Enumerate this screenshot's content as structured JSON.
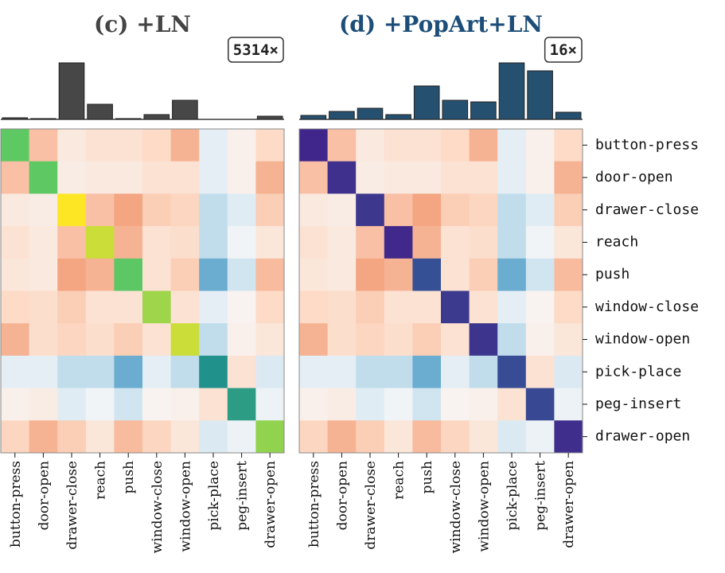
{
  "chart_data": [
    {
      "type": "heatmap",
      "title": "(c) +LN",
      "title_color": "#444444",
      "annotation": "5314×",
      "categories": [
        "button-press",
        "door-open",
        "drawer-close",
        "reach",
        "push",
        "window-close",
        "window-open",
        "pick-place",
        "peg-insert",
        "drawer-open"
      ],
      "bars": [
        2,
        1,
        71,
        19,
        1,
        6,
        24,
        0,
        0,
        4
      ],
      "bar_color": "#474747",
      "ylim": [
        0,
        75
      ],
      "matrix": [
        [
          null,
          0.3,
          0.1,
          0.15,
          0.15,
          0.2,
          0.35,
          -0.1,
          0.05,
          0.2
        ],
        [
          0.3,
          null,
          0.08,
          0.1,
          0.1,
          0.15,
          0.15,
          -0.1,
          0.05,
          0.35
        ],
        [
          0.1,
          0.08,
          null,
          0.3,
          0.4,
          0.25,
          0.22,
          -0.25,
          -0.12,
          0.25
        ],
        [
          0.15,
          0.1,
          0.3,
          null,
          0.35,
          0.15,
          0.18,
          -0.25,
          -0.03,
          0.12
        ],
        [
          0.12,
          0.1,
          0.4,
          0.35,
          null,
          0.15,
          0.25,
          -0.5,
          -0.2,
          0.32
        ],
        [
          0.2,
          0.18,
          0.25,
          0.15,
          0.15,
          null,
          0.15,
          -0.1,
          0.03,
          0.2
        ],
        [
          0.35,
          0.18,
          0.22,
          0.18,
          0.25,
          0.15,
          null,
          -0.25,
          0.05,
          0.12
        ],
        [
          -0.1,
          -0.1,
          -0.25,
          -0.25,
          -0.5,
          -0.1,
          -0.25,
          null,
          0.15,
          -0.15
        ],
        [
          0.05,
          0.08,
          -0.12,
          -0.03,
          -0.2,
          0.03,
          0.05,
          0.15,
          null,
          -0.06
        ],
        [
          0.22,
          0.35,
          0.25,
          0.12,
          0.32,
          0.22,
          0.12,
          -0.15,
          -0.06,
          null
        ]
      ],
      "colormap": [
        "#4393c3",
        "#92c5de",
        "#d1e5f0",
        "#f7f7f7",
        "#fddbc7",
        "#f4a582",
        "#d6604d"
      ],
      "clim": [
        -0.6,
        0.6
      ],
      "diagonal": [
        0.75,
        0.75,
        1.0,
        0.92,
        0.74,
        0.85,
        0.92,
        0.5,
        0.55,
        0.83
      ],
      "diagonal_colormap": [
        "#440154",
        "#3b528b",
        "#21918c",
        "#5ec962",
        "#fde725"
      ],
      "diagonal_clim": [
        0,
        1
      ]
    },
    {
      "type": "heatmap",
      "title": "(d) +PopArt+LN",
      "title_color": "#1d4e79",
      "annotation": "16×",
      "categories": [
        "button-press",
        "door-open",
        "drawer-close",
        "reach",
        "push",
        "window-close",
        "window-open",
        "pick-place",
        "peg-insert",
        "drawer-open"
      ],
      "bars": [
        5,
        10,
        14,
        6,
        42,
        24,
        22,
        71,
        61,
        9
      ],
      "bar_color": "#26506f",
      "ylim": [
        0,
        75
      ],
      "matrix": [
        [
          null,
          0.3,
          0.1,
          0.15,
          0.15,
          0.2,
          0.35,
          -0.1,
          0.05,
          0.2
        ],
        [
          0.3,
          null,
          0.08,
          0.1,
          0.1,
          0.15,
          0.15,
          -0.1,
          0.05,
          0.35
        ],
        [
          0.1,
          0.08,
          null,
          0.3,
          0.4,
          0.25,
          0.22,
          -0.25,
          -0.12,
          0.25
        ],
        [
          0.15,
          0.1,
          0.3,
          null,
          0.35,
          0.15,
          0.18,
          -0.25,
          -0.03,
          0.12
        ],
        [
          0.12,
          0.1,
          0.4,
          0.35,
          null,
          0.15,
          0.25,
          -0.5,
          -0.2,
          0.32
        ],
        [
          0.2,
          0.18,
          0.25,
          0.15,
          0.15,
          null,
          0.15,
          -0.1,
          0.03,
          0.2
        ],
        [
          0.35,
          0.18,
          0.22,
          0.18,
          0.25,
          0.15,
          null,
          -0.25,
          0.05,
          0.12
        ],
        [
          -0.1,
          -0.1,
          -0.25,
          -0.25,
          -0.5,
          -0.1,
          -0.25,
          null,
          0.15,
          -0.15
        ],
        [
          0.05,
          0.08,
          -0.12,
          -0.03,
          -0.2,
          0.03,
          0.05,
          0.15,
          null,
          -0.06
        ],
        [
          0.22,
          0.35,
          0.25,
          0.12,
          0.32,
          0.22,
          0.12,
          -0.15,
          -0.06,
          null
        ]
      ],
      "colormap": [
        "#4393c3",
        "#92c5de",
        "#d1e5f0",
        "#f7f7f7",
        "#fddbc7",
        "#f4a582",
        "#d6604d"
      ],
      "clim": [
        -0.6,
        0.6
      ],
      "diagonal": [
        1.0,
        0.8,
        0.65,
        0.95,
        0.3,
        0.6,
        0.7,
        0.35,
        0.4,
        0.85
      ],
      "diagonal_colormap": [
        "#2f6a9e",
        "#3b3f8f",
        "#40268a"
      ],
      "diagonal_clim": [
        0,
        1
      ]
    }
  ]
}
